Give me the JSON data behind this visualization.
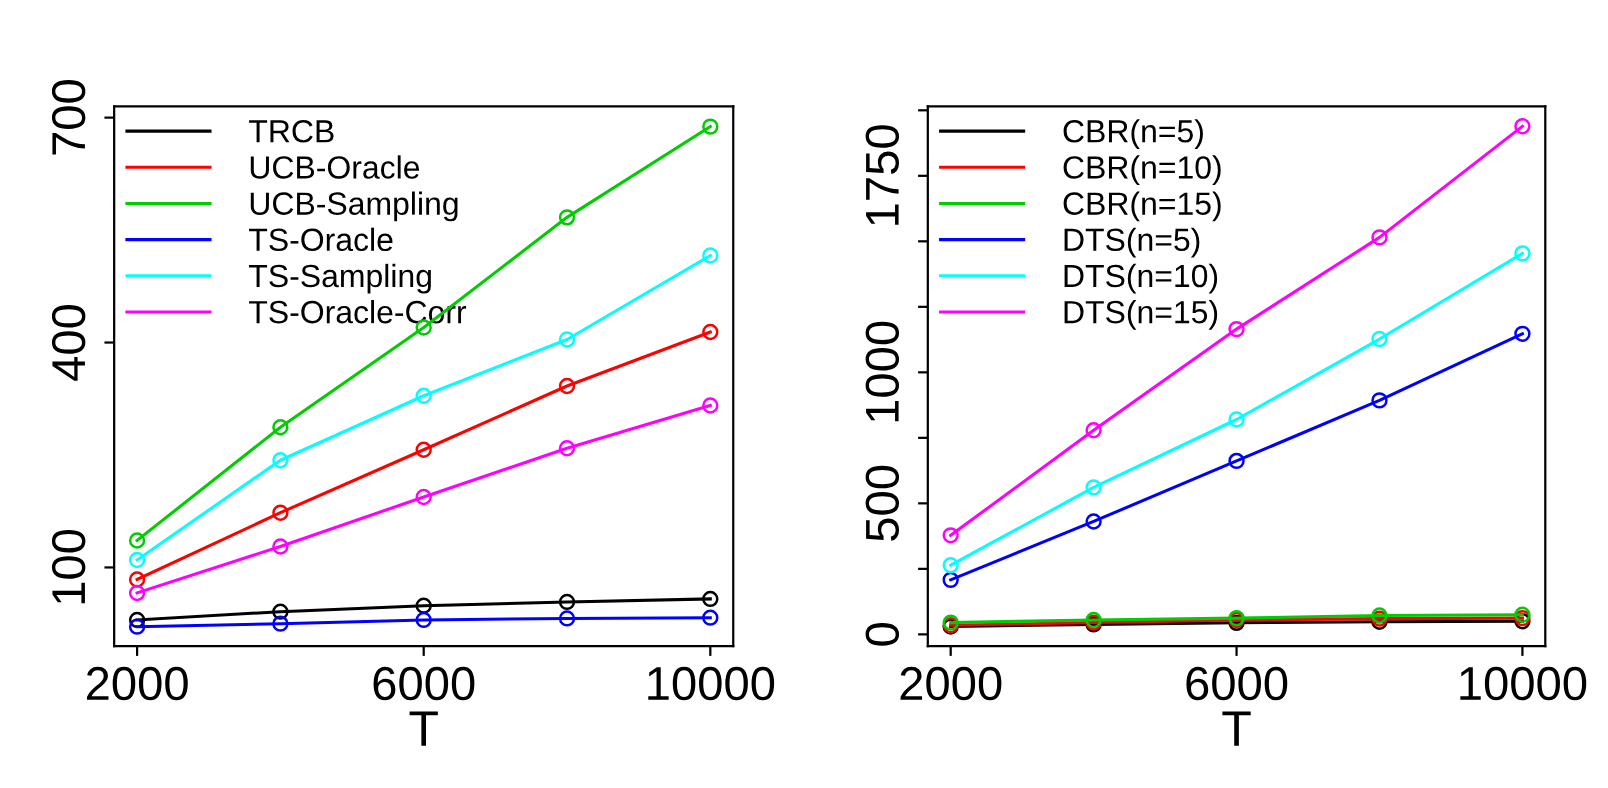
{
  "chart_data": [
    {
      "type": "line",
      "xlabel": "T",
      "x": [
        2000,
        4000,
        6000,
        8000,
        10000
      ],
      "xlim": [
        1680,
        10320
      ],
      "xticks": [
        2000,
        6000,
        10000
      ],
      "ylim": [
        -5,
        715
      ],
      "yticks": [
        100,
        400,
        700
      ],
      "marker": "circle",
      "grid": false,
      "legend": "top left",
      "series": [
        {
          "name": "TRCB",
          "color": "#000000",
          "values": [
            30,
            41,
            49,
            54,
            58
          ]
        },
        {
          "name": "UCB-Oracle",
          "color": "#ff0000",
          "values": [
            84,
            173,
            257,
            342,
            414
          ]
        },
        {
          "name": "UCB-Sampling",
          "color": "#00cd00",
          "values": [
            136,
            287,
            420,
            567,
            688
          ]
        },
        {
          "name": "TS-Oracle",
          "color": "#0000ff",
          "values": [
            21,
            25,
            30,
            32,
            33
          ]
        },
        {
          "name": "TS-Sampling",
          "color": "#00ffff",
          "values": [
            110,
            243,
            329,
            404,
            516
          ]
        },
        {
          "name": "TS-Oracle-Corr",
          "color": "#ff00ff",
          "values": [
            66,
            128,
            194,
            259,
            316
          ]
        }
      ]
    },
    {
      "type": "line",
      "xlabel": "T",
      "x": [
        2000,
        4000,
        6000,
        8000,
        10000
      ],
      "xlim": [
        1680,
        10320
      ],
      "xticks": [
        2000,
        6000,
        10000
      ],
      "ylim": [
        -45,
        2015
      ],
      "yticks": [
        0,
        {
          "value": 250,
          "label": null
        },
        500,
        {
          "value": 750,
          "label": null
        },
        1000,
        {
          "value": 1250,
          "label": null
        },
        {
          "value": 1500,
          "label": null
        },
        1750,
        {
          "value": 2000,
          "label": null
        }
      ],
      "marker": "circle",
      "grid": false,
      "legend": "top left",
      "series": [
        {
          "name": "CBR(n=5)",
          "color": "#000000",
          "values": [
            30,
            38,
            44,
            48,
            50
          ]
        },
        {
          "name": "CBR(n=10)",
          "color": "#ff0000",
          "values": [
            35,
            45,
            55,
            60,
            62
          ]
        },
        {
          "name": "CBR(n=15)",
          "color": "#00cd00",
          "values": [
            45,
            55,
            62,
            72,
            75
          ]
        },
        {
          "name": "DTS(n=5)",
          "color": "#0000ff",
          "values": [
            208,
            431,
            662,
            893,
            1147
          ]
        },
        {
          "name": "DTS(n=10)",
          "color": "#00ffff",
          "values": [
            264,
            561,
            820,
            1127,
            1454
          ]
        },
        {
          "name": "DTS(n=15)",
          "color": "#ff00ff",
          "values": [
            378,
            779,
            1165,
            1515,
            1939
          ]
        }
      ]
    }
  ]
}
